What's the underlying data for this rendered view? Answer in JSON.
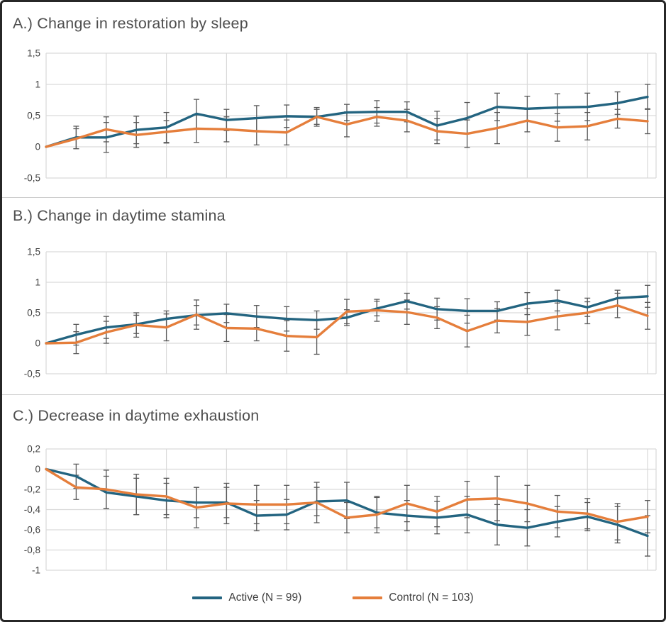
{
  "figure": {
    "background": "#ffffff",
    "border_color": "#272727"
  },
  "colors": {
    "active": "#236480",
    "control": "#E57E3B",
    "grid": "#D9D9D9",
    "error_bar": "#595959",
    "tick_text": "#404040",
    "title_text": "#4e4e4e"
  },
  "legend": {
    "items": [
      {
        "label": "Active (N = 99)",
        "color_key": "active"
      },
      {
        "label": "Control (N = 103)",
        "color_key": "control"
      }
    ]
  },
  "chart_data": [
    {
      "id": "A",
      "type": "line",
      "title": "A.) Change in restoration by sleep",
      "ylim": [
        -0.5,
        1.5
      ],
      "yticks": [
        1.5,
        1,
        0.5,
        0,
        -0.5
      ],
      "ytick_labels": [
        "1,5",
        "1",
        "0,5",
        "0",
        "-0,5"
      ],
      "x_count": 21,
      "x_tick_labels": [],
      "grid": "on",
      "error_bars": "both-series",
      "series": [
        {
          "name": "Active (N = 99)",
          "color_key": "active",
          "values": [
            0,
            0.15,
            0.15,
            0.27,
            0.31,
            0.53,
            0.43,
            0.46,
            0.49,
            0.48,
            0.55,
            0.56,
            0.56,
            0.34,
            0.46,
            0.64,
            0.61,
            0.63,
            0.64,
            0.7,
            0.8
          ],
          "err": [
            0,
            0.18,
            0.24,
            0.22,
            0.24,
            0.23,
            0.17,
            0.2,
            0.18,
            0.12,
            0.13,
            0.18,
            0.16,
            0.23,
            0.25,
            0.22,
            0.2,
            0.22,
            0.22,
            0.18,
            0.2
          ]
        },
        {
          "name": "Control (N = 103)",
          "color_key": "control",
          "values": [
            0,
            0.13,
            0.28,
            0.19,
            0.24,
            0.29,
            0.28,
            0.25,
            0.23,
            0.48,
            0.36,
            0.48,
            0.42,
            0.25,
            0.21,
            0.3,
            0.42,
            0.31,
            0.33,
            0.45,
            0.41
          ],
          "err": [
            0,
            0.16,
            0.2,
            0.2,
            0.18,
            0.22,
            0.2,
            0.22,
            0.2,
            0.15,
            0.2,
            0.15,
            0.18,
            0.2,
            0.22,
            0.25,
            0.18,
            0.22,
            0.22,
            0.15,
            0.2
          ]
        }
      ]
    },
    {
      "id": "B",
      "type": "line",
      "title": "B.) Change in daytime stamina",
      "ylim": [
        -0.5,
        1.5
      ],
      "yticks": [
        1.5,
        1,
        0.5,
        0,
        -0.5
      ],
      "ytick_labels": [
        "1,5",
        "1",
        "0,5",
        "0",
        "-0,5"
      ],
      "x_count": 21,
      "x_tick_labels": [],
      "grid": "on",
      "error_bars": "both-series",
      "series": [
        {
          "name": "Active (N = 99)",
          "color_key": "active",
          "values": [
            0,
            0.14,
            0.26,
            0.31,
            0.4,
            0.46,
            0.49,
            0.44,
            0.4,
            0.38,
            0.42,
            0.57,
            0.69,
            0.56,
            0.53,
            0.53,
            0.65,
            0.7,
            0.59,
            0.74,
            0.77
          ],
          "err": [
            0,
            0.17,
            0.18,
            0.15,
            0.13,
            0.16,
            0.15,
            0.18,
            0.2,
            0.15,
            0.13,
            0.12,
            0.13,
            0.18,
            0.2,
            0.15,
            0.18,
            0.17,
            0.15,
            0.13,
            0.18
          ]
        },
        {
          "name": "Control (N = 103)",
          "color_key": "control",
          "values": [
            0,
            0.01,
            0.18,
            0.3,
            0.26,
            0.47,
            0.25,
            0.24,
            0.12,
            0.1,
            0.52,
            0.54,
            0.51,
            0.42,
            0.2,
            0.37,
            0.35,
            0.44,
            0.5,
            0.62,
            0.45
          ],
          "err": [
            0,
            0.18,
            0.18,
            0.2,
            0.22,
            0.24,
            0.22,
            0.2,
            0.25,
            0.28,
            0.2,
            0.18,
            0.2,
            0.18,
            0.26,
            0.2,
            0.22,
            0.22,
            0.18,
            0.2,
            0.22
          ]
        }
      ]
    },
    {
      "id": "C",
      "type": "line",
      "title": "C.) Decrease in daytime exhaustion",
      "ylim": [
        -1,
        0.2
      ],
      "yticks": [
        0.2,
        0,
        -0.2,
        -0.4,
        -0.6,
        -0.8,
        -1
      ],
      "ytick_labels": [
        "0,2",
        "0",
        "-0,2",
        "-0,4",
        "-0,6",
        "-0,8",
        "-1"
      ],
      "x_count": 21,
      "x_tick_labels": [],
      "grid": "on",
      "error_bars": "both-series",
      "series": [
        {
          "name": "Active (N = 99)",
          "color_key": "active",
          "values": [
            0,
            -0.07,
            -0.23,
            -0.27,
            -0.31,
            -0.33,
            -0.33,
            -0.46,
            -0.45,
            -0.32,
            -0.31,
            -0.43,
            -0.46,
            -0.48,
            -0.45,
            -0.55,
            -0.58,
            -0.52,
            -0.47,
            -0.55,
            -0.66
          ],
          "err": [
            0,
            0.12,
            0.16,
            0.18,
            0.17,
            0.15,
            0.15,
            0.15,
            0.15,
            0.14,
            0.18,
            0.15,
            0.15,
            0.16,
            0.18,
            0.2,
            0.18,
            0.15,
            0.14,
            0.18,
            0.2
          ]
        },
        {
          "name": "Control (N = 103)",
          "color_key": "control",
          "values": [
            0,
            -0.18,
            -0.2,
            -0.25,
            -0.27,
            -0.38,
            -0.34,
            -0.35,
            -0.35,
            -0.33,
            -0.48,
            -0.45,
            -0.34,
            -0.42,
            -0.3,
            -0.29,
            -0.34,
            -0.42,
            -0.44,
            -0.52,
            -0.47
          ],
          "err": [
            0,
            0.12,
            0.19,
            0.2,
            0.18,
            0.2,
            0.2,
            0.19,
            0.19,
            0.2,
            0.15,
            0.18,
            0.18,
            0.15,
            0.18,
            0.22,
            0.18,
            0.16,
            0.15,
            0.18,
            0.16
          ]
        }
      ]
    }
  ]
}
